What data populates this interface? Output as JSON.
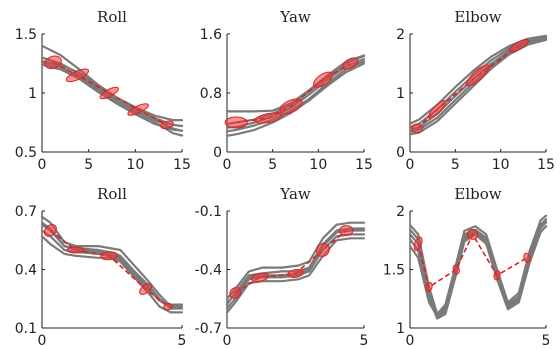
{
  "chart_data": [
    {
      "type": "line",
      "title": "Roll",
      "xlim": [
        0,
        15
      ],
      "ylim": [
        0.5,
        1.5
      ],
      "xticks": [
        "0",
        "5",
        "10",
        "15"
      ],
      "yticks": [
        "0.5",
        "1",
        "1.5"
      ],
      "series": [
        {
          "x": [
            0,
            2,
            4,
            6,
            8,
            10,
            12,
            14,
            15
          ],
          "y": [
            1.4,
            1.32,
            1.2,
            1.07,
            0.96,
            0.86,
            0.79,
            0.73,
            0.72
          ]
        },
        {
          "x": [
            0,
            2,
            4,
            6,
            8,
            10,
            12,
            14,
            15
          ],
          "y": [
            1.3,
            1.25,
            1.16,
            1.05,
            0.95,
            0.86,
            0.78,
            0.7,
            0.68
          ]
        },
        {
          "x": [
            0,
            2,
            4,
            6,
            8,
            10,
            12,
            14,
            15
          ],
          "y": [
            1.27,
            1.24,
            1.17,
            1.06,
            0.96,
            0.88,
            0.81,
            0.77,
            0.77
          ]
        },
        {
          "x": [
            0,
            2,
            4,
            6,
            8,
            10,
            12,
            14,
            15
          ],
          "y": [
            1.24,
            1.2,
            1.12,
            1.01,
            0.91,
            0.82,
            0.74,
            0.69,
            0.68
          ]
        },
        {
          "x": [
            0,
            2,
            4,
            6,
            8,
            10,
            12,
            14,
            15
          ],
          "y": [
            1.26,
            1.22,
            1.14,
            1.03,
            0.93,
            0.84,
            0.76,
            0.66,
            0.64
          ]
        }
      ],
      "ellipses": [
        {
          "x": 1.2,
          "y": 1.26,
          "rx": 0.9,
          "ry": 0.05,
          "angle": -20
        },
        {
          "x": 3.8,
          "y": 1.15,
          "rx": 1.3,
          "ry": 0.035,
          "angle": -25
        },
        {
          "x": 7.2,
          "y": 1.0,
          "rx": 1.1,
          "ry": 0.03,
          "angle": -28
        },
        {
          "x": 10.3,
          "y": 0.86,
          "rx": 1.2,
          "ry": 0.03,
          "angle": -25
        },
        {
          "x": 13.4,
          "y": 0.73,
          "rx": 0.7,
          "ry": 0.03,
          "angle": -15
        }
      ]
    },
    {
      "type": "line",
      "title": "Yaw",
      "xlim": [
        0,
        15
      ],
      "ylim": [
        0,
        1.6
      ],
      "xticks": [
        "0",
        "5",
        "10",
        "15"
      ],
      "yticks": [
        "0",
        "0.8",
        "1.6"
      ],
      "series": [
        {
          "x": [
            0,
            1,
            3,
            5,
            7,
            9,
            11,
            13,
            15
          ],
          "y": [
            0.38,
            0.4,
            0.44,
            0.52,
            0.64,
            0.82,
            1.02,
            1.2,
            1.3
          ]
        },
        {
          "x": [
            0,
            1,
            3,
            5,
            7,
            9,
            11,
            13,
            15
          ],
          "y": [
            0.33,
            0.34,
            0.4,
            0.48,
            0.6,
            0.78,
            0.98,
            1.16,
            1.26
          ]
        },
        {
          "x": [
            0,
            1,
            3,
            5,
            7,
            9,
            11,
            13,
            15
          ],
          "y": [
            0.28,
            0.3,
            0.36,
            0.44,
            0.56,
            0.72,
            0.93,
            1.12,
            1.23
          ]
        },
        {
          "x": [
            0,
            1,
            3,
            5,
            7,
            9,
            11,
            13,
            15
          ],
          "y": [
            0.22,
            0.24,
            0.3,
            0.4,
            0.53,
            0.7,
            0.9,
            1.08,
            1.2
          ]
        },
        {
          "x": [
            0,
            1,
            3,
            5,
            7,
            9,
            11,
            13,
            15
          ],
          "y": [
            0.55,
            0.55,
            0.55,
            0.56,
            0.66,
            0.84,
            1.04,
            1.22,
            1.31
          ]
        }
      ],
      "ellipses": [
        {
          "x": 1.0,
          "y": 0.4,
          "rx": 0.6,
          "ry": 0.15,
          "angle": 0
        },
        {
          "x": 4.5,
          "y": 0.46,
          "rx": 1.5,
          "ry": 0.06,
          "angle": -12
        },
        {
          "x": 7.0,
          "y": 0.62,
          "rx": 1.3,
          "ry": 0.08,
          "angle": -25
        },
        {
          "x": 10.5,
          "y": 0.98,
          "rx": 1.2,
          "ry": 0.07,
          "angle": -35
        },
        {
          "x": 13.5,
          "y": 1.2,
          "rx": 0.9,
          "ry": 0.06,
          "angle": -30
        }
      ]
    },
    {
      "type": "line",
      "title": "Elbow",
      "xlim": [
        0,
        15
      ],
      "ylim": [
        0,
        2
      ],
      "xticks": [
        "0",
        "5",
        "10",
        "15"
      ],
      "yticks": [
        "0",
        "1",
        "2"
      ],
      "series": [
        {
          "x": [
            0,
            1,
            3,
            5,
            7,
            9,
            11,
            13,
            15
          ],
          "y": [
            0.48,
            0.55,
            0.8,
            1.1,
            1.38,
            1.62,
            1.8,
            1.92,
            1.97
          ]
        },
        {
          "x": [
            0,
            1,
            3,
            5,
            7,
            9,
            11,
            13,
            15
          ],
          "y": [
            0.42,
            0.48,
            0.72,
            1.02,
            1.3,
            1.56,
            1.76,
            1.9,
            1.96
          ]
        },
        {
          "x": [
            0,
            1,
            3,
            5,
            7,
            9,
            11,
            13,
            15
          ],
          "y": [
            0.38,
            0.42,
            0.65,
            0.95,
            1.24,
            1.5,
            1.72,
            1.87,
            1.94
          ]
        },
        {
          "x": [
            0,
            1,
            3,
            5,
            7,
            9,
            11,
            13,
            15
          ],
          "y": [
            0.34,
            0.38,
            0.58,
            0.88,
            1.18,
            1.45,
            1.68,
            1.84,
            1.92
          ]
        },
        {
          "x": [
            0,
            1,
            3,
            5,
            7,
            9,
            11,
            13,
            15
          ],
          "y": [
            0.3,
            0.33,
            0.52,
            0.82,
            1.12,
            1.42,
            1.66,
            1.82,
            1.9
          ]
        }
      ],
      "ellipses": [
        {
          "x": 0.8,
          "y": 0.4,
          "rx": 0.5,
          "ry": 0.09,
          "angle": 0
        },
        {
          "x": 3.0,
          "y": 0.72,
          "rx": 1.3,
          "ry": 0.06,
          "angle": -45
        },
        {
          "x": 7.5,
          "y": 1.3,
          "rx": 1.6,
          "ry": 0.08,
          "angle": -42
        },
        {
          "x": 12.0,
          "y": 1.8,
          "rx": 1.2,
          "ry": 0.06,
          "angle": -30
        }
      ]
    },
    {
      "type": "line",
      "title": "Roll",
      "xlim": [
        0,
        5
      ],
      "ylim": [
        0.1,
        0.7
      ],
      "xticks": [
        "0",
        "5"
      ],
      "yticks": [
        "0.1",
        "0.4",
        "0.7"
      ],
      "series": [
        {
          "x": [
            0,
            0.3,
            0.8,
            1.2,
            2.0,
            2.4,
            2.8,
            3.3,
            3.8,
            4.2,
            4.6,
            5.0
          ],
          "y": [
            0.67,
            0.64,
            0.54,
            0.52,
            0.52,
            0.51,
            0.5,
            0.42,
            0.34,
            0.27,
            0.21,
            0.2
          ]
        },
        {
          "x": [
            0,
            0.3,
            0.8,
            1.2,
            2.0,
            2.4,
            2.8,
            3.3,
            3.8,
            4.2,
            4.6,
            5.0
          ],
          "y": [
            0.64,
            0.61,
            0.52,
            0.51,
            0.5,
            0.49,
            0.47,
            0.39,
            0.32,
            0.25,
            0.2,
            0.2
          ]
        },
        {
          "x": [
            0,
            0.3,
            0.8,
            1.2,
            2.0,
            2.4,
            2.8,
            3.3,
            3.8,
            4.2,
            4.6,
            5.0
          ],
          "y": [
            0.6,
            0.57,
            0.5,
            0.49,
            0.48,
            0.47,
            0.45,
            0.37,
            0.3,
            0.24,
            0.22,
            0.22
          ]
        },
        {
          "x": [
            0,
            0.3,
            0.8,
            1.2,
            2.0,
            2.4,
            2.8,
            3.3,
            3.8,
            4.2,
            4.6,
            5.0
          ],
          "y": [
            0.57,
            0.53,
            0.48,
            0.47,
            0.46,
            0.46,
            0.44,
            0.36,
            0.28,
            0.21,
            0.18,
            0.18
          ]
        },
        {
          "x": [
            0,
            0.3,
            0.8,
            1.2,
            2.0,
            2.4,
            2.8,
            3.3,
            3.8,
            4.2,
            4.6,
            5.0
          ],
          "y": [
            0.63,
            0.6,
            0.52,
            0.5,
            0.49,
            0.48,
            0.46,
            0.38,
            0.31,
            0.24,
            0.21,
            0.21
          ]
        }
      ],
      "ellipses": [
        {
          "x": 0.3,
          "y": 0.6,
          "rx": 0.18,
          "ry": 0.035,
          "angle": -45
        },
        {
          "x": 1.2,
          "y": 0.5,
          "rx": 0.3,
          "ry": 0.015,
          "angle": 0
        },
        {
          "x": 2.4,
          "y": 0.47,
          "rx": 0.3,
          "ry": 0.02,
          "angle": -5
        },
        {
          "x": 3.7,
          "y": 0.3,
          "rx": 0.25,
          "ry": 0.02,
          "angle": -40
        },
        {
          "x": 4.5,
          "y": 0.21,
          "rx": 0.15,
          "ry": 0.012,
          "angle": 0
        }
      ]
    },
    {
      "type": "line",
      "title": "Yaw",
      "xlim": [
        0,
        5
      ],
      "ylim": [
        -0.7,
        -0.1
      ],
      "xticks": [
        "0",
        "5"
      ],
      "yticks": [
        "-0.1",
        "-0.4",
        "-0.7"
      ],
      "series": [
        {
          "x": [
            0,
            0.3,
            0.8,
            1.3,
            2.0,
            2.6,
            3.0,
            3.5,
            4.0,
            4.5,
            5.0
          ],
          "y": [
            -0.55,
            -0.5,
            -0.41,
            -0.39,
            -0.39,
            -0.38,
            -0.36,
            -0.24,
            -0.17,
            -0.16,
            -0.16
          ]
        },
        {
          "x": [
            0,
            0.3,
            0.8,
            1.3,
            2.0,
            2.6,
            3.0,
            3.5,
            4.0,
            4.5,
            5.0
          ],
          "y": [
            -0.58,
            -0.52,
            -0.43,
            -0.42,
            -0.41,
            -0.41,
            -0.39,
            -0.27,
            -0.2,
            -0.19,
            -0.19
          ]
        },
        {
          "x": [
            0,
            0.3,
            0.8,
            1.3,
            2.0,
            2.6,
            3.0,
            3.5,
            4.0,
            4.5,
            5.0
          ],
          "y": [
            -0.6,
            -0.55,
            -0.45,
            -0.44,
            -0.44,
            -0.43,
            -0.41,
            -0.3,
            -0.23,
            -0.22,
            -0.22
          ]
        },
        {
          "x": [
            0,
            0.3,
            0.8,
            1.3,
            2.0,
            2.6,
            3.0,
            3.5,
            4.0,
            4.5,
            5.0
          ],
          "y": [
            -0.62,
            -0.57,
            -0.47,
            -0.46,
            -0.46,
            -0.45,
            -0.43,
            -0.33,
            -0.25,
            -0.24,
            -0.24
          ]
        },
        {
          "x": [
            0,
            0.3,
            0.8,
            1.3,
            2.0,
            2.6,
            3.0,
            3.5,
            4.0,
            4.5,
            5.0
          ],
          "y": [
            -0.57,
            -0.53,
            -0.44,
            -0.43,
            -0.43,
            -0.42,
            -0.4,
            -0.28,
            -0.21,
            -0.2,
            -0.2
          ]
        }
      ],
      "ellipses": [
        {
          "x": 0.3,
          "y": -0.52,
          "rx": 0.18,
          "ry": 0.03,
          "angle": -45
        },
        {
          "x": 1.2,
          "y": -0.44,
          "rx": 0.32,
          "ry": 0.02,
          "angle": -10
        },
        {
          "x": 2.5,
          "y": -0.42,
          "rx": 0.28,
          "ry": 0.02,
          "angle": -10
        },
        {
          "x": 3.5,
          "y": -0.3,
          "rx": 0.22,
          "ry": 0.035,
          "angle": -50
        },
        {
          "x": 4.35,
          "y": -0.2,
          "rx": 0.18,
          "ry": 0.035,
          "angle": 0
        }
      ]
    },
    {
      "type": "line",
      "title": "Elbow",
      "xlim": [
        0,
        5
      ],
      "ylim": [
        1,
        2
      ],
      "xticks": [
        "0",
        "5"
      ],
      "yticks": [
        "1",
        "1.5",
        "2"
      ],
      "series": [
        {
          "x": [
            0,
            0.3,
            0.7,
            1.0,
            1.3,
            1.7,
            2.0,
            2.4,
            2.8,
            3.2,
            3.6,
            4.0,
            4.4,
            4.8,
            5.0
          ],
          "y": [
            1.88,
            1.8,
            1.35,
            1.12,
            1.2,
            1.55,
            1.83,
            1.87,
            1.8,
            1.5,
            1.22,
            1.3,
            1.66,
            1.92,
            1.96
          ]
        },
        {
          "x": [
            0,
            0.3,
            0.7,
            1.0,
            1.3,
            1.7,
            2.0,
            2.4,
            2.8,
            3.2,
            3.6,
            4.0,
            4.4,
            4.8,
            5.0
          ],
          "y": [
            1.84,
            1.76,
            1.33,
            1.1,
            1.16,
            1.52,
            1.8,
            1.84,
            1.77,
            1.47,
            1.2,
            1.27,
            1.62,
            1.88,
            1.93
          ]
        },
        {
          "x": [
            0,
            0.3,
            0.7,
            1.0,
            1.3,
            1.7,
            2.0,
            2.4,
            2.8,
            3.2,
            3.6,
            4.0,
            4.4,
            4.8,
            5.0
          ],
          "y": [
            1.8,
            1.72,
            1.3,
            1.09,
            1.14,
            1.5,
            1.78,
            1.82,
            1.75,
            1.45,
            1.18,
            1.24,
            1.6,
            1.86,
            1.9
          ]
        },
        {
          "x": [
            0,
            0.3,
            0.7,
            1.0,
            1.3,
            1.7,
            2.0,
            2.4,
            2.8,
            3.2,
            3.6,
            4.0,
            4.4,
            4.8,
            5.0
          ],
          "y": [
            1.76,
            1.66,
            1.26,
            1.08,
            1.12,
            1.46,
            1.74,
            1.8,
            1.72,
            1.42,
            1.16,
            1.22,
            1.56,
            1.82,
            1.87
          ]
        },
        {
          "x": [
            0,
            0.3,
            0.7,
            1.0,
            1.3,
            1.7,
            2.0,
            2.4,
            2.8,
            3.2,
            3.6,
            4.0,
            4.4,
            4.8,
            5.0
          ],
          "y": [
            1.7,
            1.6,
            1.22,
            1.1,
            1.18,
            1.5,
            1.76,
            1.82,
            1.74,
            1.44,
            1.19,
            1.25,
            1.6,
            1.85,
            1.91
          ]
        }
      ],
      "ellipses": [
        {
          "x": 0.3,
          "y": 1.72,
          "rx": 0.12,
          "ry": 0.06,
          "angle": -70
        },
        {
          "x": 0.7,
          "y": 1.35,
          "rx": 0.1,
          "ry": 0.04,
          "angle": -75
        },
        {
          "x": 1.7,
          "y": 1.5,
          "rx": 0.1,
          "ry": 0.04,
          "angle": 75
        },
        {
          "x": 2.3,
          "y": 1.8,
          "rx": 0.18,
          "ry": 0.045,
          "angle": 0
        },
        {
          "x": 3.2,
          "y": 1.45,
          "rx": 0.1,
          "ry": 0.04,
          "angle": -75
        },
        {
          "x": 4.3,
          "y": 1.6,
          "rx": 0.1,
          "ry": 0.04,
          "angle": 75
        }
      ]
    }
  ]
}
